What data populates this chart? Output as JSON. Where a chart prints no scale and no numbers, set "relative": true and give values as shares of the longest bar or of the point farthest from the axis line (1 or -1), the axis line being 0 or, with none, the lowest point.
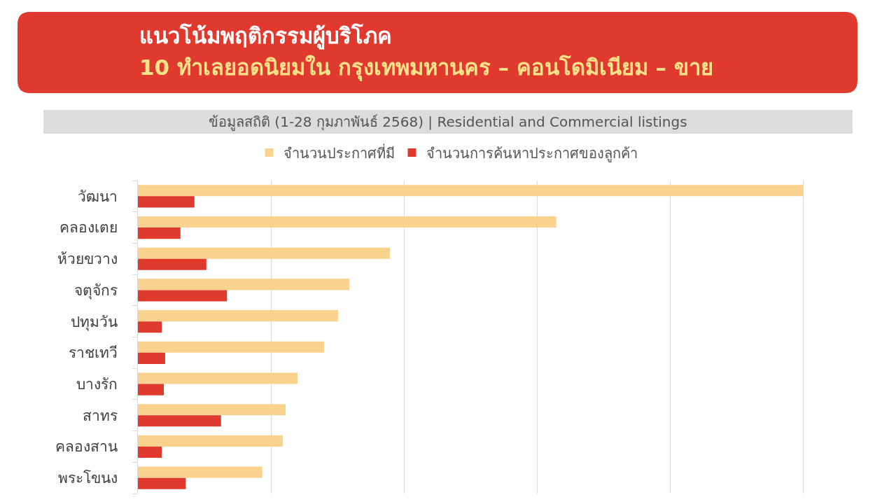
{
  "chart_data": {
    "type": "bar",
    "orientation": "horizontal",
    "relative": true,
    "title": "แนวโน้มพฤติกรรมผู้บริโภค",
    "subtitle": "10 ทำเลยอดนิยมใน กรุงเทพมหานคร – คอนโดมิเนียม – ขาย",
    "annotations": [
      "ข้อมูลสถิติ (1-28 กุมภาพันธ์ 2568) | Residential and Commercial listings"
    ],
    "categories": [
      "วัฒนา",
      "คลองเตย",
      "ห้วยขวาง",
      "จตุจักร",
      "ปทุมวัน",
      "ราชเทวี",
      "บางรัก",
      "สาทร",
      "คลองสาน",
      "พระโขนง"
    ],
    "series": [
      {
        "name": "จำนวนประกาศที่มี",
        "color": "#f9d38e",
        "values": [
          1,
          0.629,
          0.379,
          0.318,
          0.301,
          0.28,
          0.24,
          0.222,
          0.218,
          0.187
        ]
      },
      {
        "name": "จำนวนการค้นหาประกาศของลูกค้า",
        "color": "#e03a2f",
        "values": [
          0.085,
          0.064,
          0.103,
          0.134,
          0.036,
          0.041,
          0.039,
          0.125,
          0.036,
          0.072
        ]
      }
    ],
    "grid": "x",
    "legend": "top",
    "tick_labels": "y"
  }
}
